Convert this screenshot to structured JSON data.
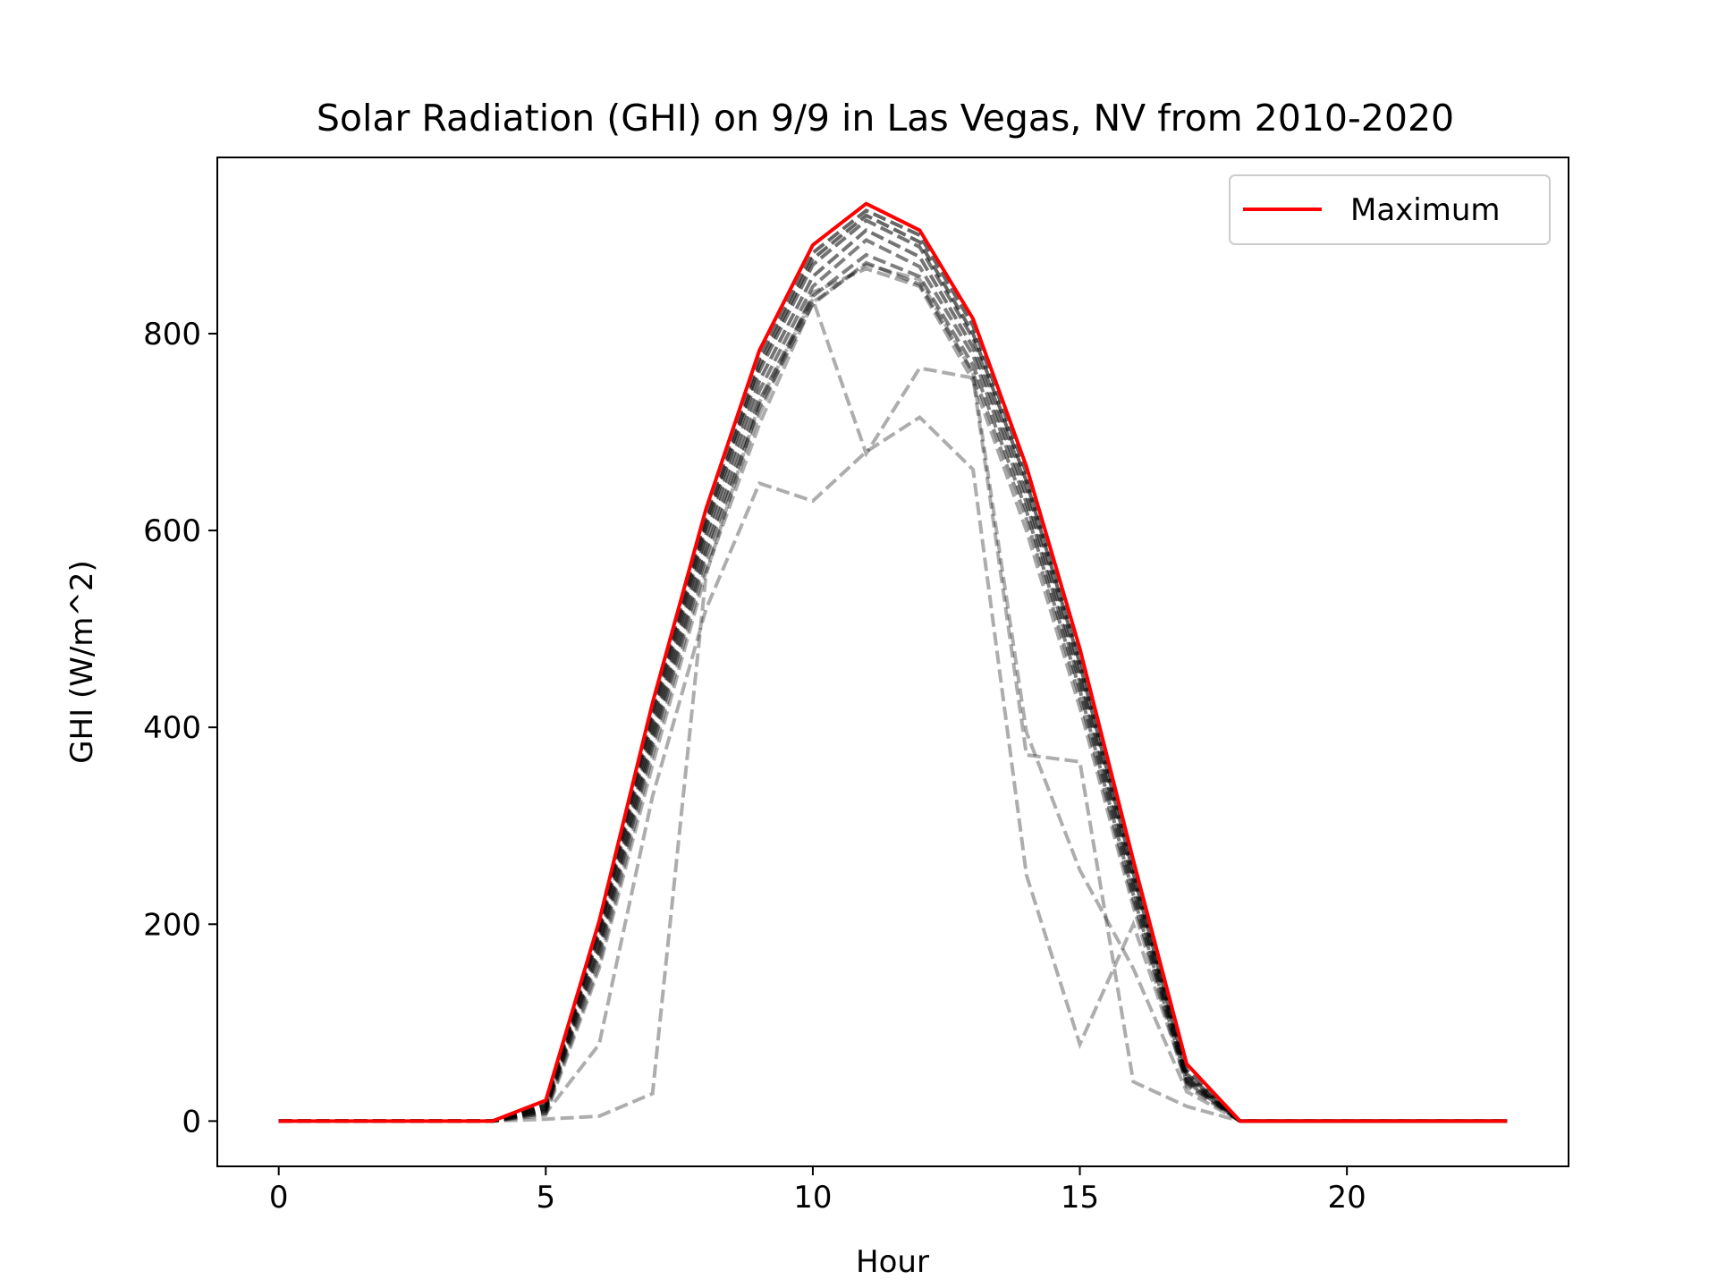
{
  "chart_data": {
    "type": "line",
    "title": "Solar Radiation (GHI) on 9/9 in Las Vegas, NV from 2010-2020",
    "xlabel": "Hour",
    "ylabel": "GHI (W/m^2)",
    "xlim": [
      -1.15,
      24.15
    ],
    "ylim": [
      -46,
      979
    ],
    "xticks": [
      0,
      5,
      10,
      15,
      20
    ],
    "yticks": [
      0,
      200,
      400,
      600,
      800
    ],
    "grid": false,
    "legend": {
      "placement": "top-right",
      "entries": [
        "Maximum"
      ]
    },
    "colors": {
      "maximum": "#ff0000",
      "years": "#000000"
    },
    "x": [
      0,
      1,
      2,
      3,
      4,
      5,
      6,
      7,
      8,
      9,
      10,
      11,
      12,
      13,
      14,
      15,
      16,
      17,
      18,
      19,
      20,
      21,
      22,
      23
    ],
    "maximum": {
      "name": "Maximum",
      "values": [
        0,
        0,
        0,
        0,
        0,
        21,
        203,
        425,
        622,
        783,
        890,
        932,
        905,
        815,
        665,
        480,
        265,
        58,
        0,
        0,
        0,
        0,
        0,
        0
      ]
    },
    "series": [
      {
        "values": [
          0,
          0,
          0,
          0,
          0,
          18,
          198,
          418,
          615,
          775,
          882,
          925,
          900,
          808,
          658,
          472,
          258,
          52,
          0,
          0,
          0,
          0,
          0,
          0
        ],
        "opacity": 0.6
      },
      {
        "values": [
          0,
          0,
          0,
          0,
          0,
          16,
          193,
          412,
          608,
          768,
          876,
          920,
          893,
          800,
          650,
          465,
          252,
          48,
          0,
          0,
          0,
          0,
          0,
          0
        ],
        "opacity": 0.6
      },
      {
        "values": [
          0,
          0,
          0,
          0,
          0,
          15,
          190,
          405,
          603,
          762,
          870,
          915,
          888,
          795,
          645,
          460,
          248,
          46,
          0,
          0,
          0,
          0,
          0,
          0
        ],
        "opacity": 0.55
      },
      {
        "values": [
          0,
          0,
          0,
          0,
          0,
          13,
          183,
          398,
          596,
          752,
          858,
          905,
          878,
          786,
          636,
          452,
          242,
          44,
          0,
          0,
          0,
          0,
          0,
          0
        ],
        "opacity": 0.55
      },
      {
        "values": [
          0,
          0,
          0,
          0,
          0,
          12,
          178,
          392,
          588,
          742,
          848,
          895,
          868,
          778,
          628,
          445,
          236,
          42,
          0,
          0,
          0,
          0,
          0,
          0
        ],
        "opacity": 0.5
      },
      {
        "values": [
          0,
          0,
          0,
          0,
          0,
          11,
          173,
          386,
          580,
          732,
          838,
          880,
          858,
          768,
          620,
          438,
          230,
          40,
          0,
          0,
          0,
          0,
          0,
          0
        ],
        "opacity": 0.5
      },
      {
        "values": [
          0,
          0,
          0,
          0,
          0,
          10,
          168,
          380,
          574,
          725,
          830,
          872,
          850,
          760,
          612,
          430,
          225,
          38,
          0,
          0,
          0,
          0,
          0,
          0
        ],
        "opacity": 0.45
      },
      {
        "values": [
          0,
          0,
          0,
          0,
          0,
          8,
          160,
          372,
          565,
          718,
          842,
          866,
          848,
          752,
          600,
          420,
          218,
          35,
          0,
          0,
          0,
          0,
          0,
          0
        ],
        "opacity": 0.35
      },
      {
        "values": [
          0,
          0,
          0,
          0,
          0,
          8,
          78,
          330,
          520,
          648,
          630,
          680,
          715,
          662,
          250,
          78,
          200,
          40,
          0,
          0,
          0,
          0,
          0,
          0
        ],
        "opacity": 0.32
      },
      {
        "values": [
          0,
          0,
          0,
          0,
          0,
          2,
          5,
          28,
          555,
          730,
          835,
          678,
          765,
          755,
          372,
          365,
          40,
          15,
          0,
          0,
          0,
          0,
          0,
          0
        ],
        "opacity": 0.32
      },
      {
        "values": [
          0,
          0,
          0,
          0,
          0,
          6,
          155,
          362,
          558,
          708,
          832,
          870,
          855,
          760,
          395,
          255,
          155,
          30,
          0,
          0,
          0,
          0,
          0,
          0
        ],
        "opacity": 0.32
      }
    ]
  }
}
